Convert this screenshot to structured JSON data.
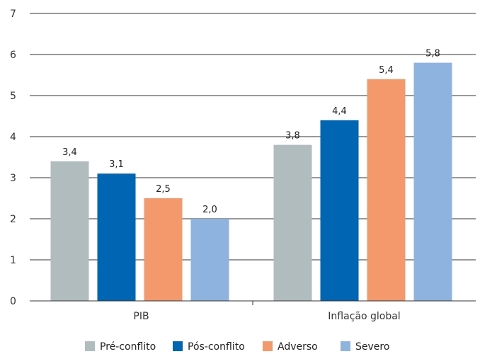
{
  "chart_data": {
    "type": "bar",
    "categories": [
      "PIB",
      "Inflação global"
    ],
    "series": [
      {
        "name": "Pré-conflito",
        "values": [
          3.4,
          3.8
        ],
        "labels": [
          "3,4",
          "3,8"
        ],
        "color": "#b1bcbf"
      },
      {
        "name": "Pós-conflito",
        "values": [
          3.1,
          4.4
        ],
        "labels": [
          "3,1",
          "4,4"
        ],
        "color": "#0066b3"
      },
      {
        "name": "Adverso",
        "values": [
          2.5,
          5.4
        ],
        "labels": [
          "2,5",
          "5,4"
        ],
        "color": "#f4996b"
      },
      {
        "name": "Severo",
        "values": [
          2.0,
          5.8
        ],
        "labels": [
          "2,0",
          "5,8"
        ],
        "color": "#8eb3de"
      }
    ],
    "yticks": [
      "0",
      "1",
      "2",
      "3",
      "4",
      "5",
      "6",
      "7"
    ],
    "ylim": [
      0,
      7
    ],
    "grid": true,
    "legend_position": "bottom"
  }
}
